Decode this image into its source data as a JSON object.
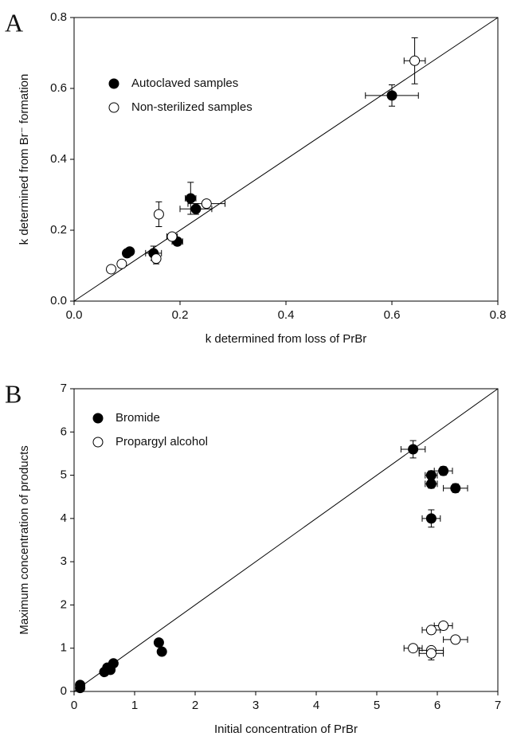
{
  "chart_data": [
    {
      "type": "scatter",
      "panel_label": "A",
      "x_label": "k determined from loss of PrBr",
      "y_label": "k determined from Br⁻ formation",
      "xlim": [
        0,
        0.8
      ],
      "ylim": [
        0,
        0.8
      ],
      "xticks": [
        {
          "value": 0,
          "label": "0.0"
        },
        0.2,
        0.4,
        0.6,
        0.8
      ],
      "yticks": [
        {
          "value": 0,
          "label": "0.0"
        },
        0.2,
        0.4,
        0.6,
        0.8
      ],
      "legend": "upper left",
      "series": [
        {
          "name": "Autoclaved samples",
          "color": "#000000",
          "marker": "filled",
          "x": [
            0.6,
            0.22,
            0.23,
            0.195,
            0.15,
            0.1,
            0.105
          ],
          "values": [
            0.58,
            0.29,
            0.26,
            0.168,
            0.135,
            0.135,
            0.14
          ],
          "xerr": [
            0.05,
            0.01,
            0.03,
            0.01,
            0.015,
            null,
            null
          ],
          "yerr": [
            0.03,
            0.045,
            0.015,
            0.01,
            0.02,
            0.01,
            null
          ]
        },
        {
          "name": "Non-sterilized samples",
          "color": "#000000",
          "marker": "open",
          "x": [
            0.643,
            0.16,
            0.25,
            0.185,
            0.155,
            0.09,
            0.07
          ],
          "values": [
            0.678,
            0.245,
            0.275,
            0.182,
            0.12,
            0.105,
            0.09
          ],
          "xerr": [
            0.02,
            null,
            0.035,
            0.01,
            null,
            null,
            null
          ],
          "yerr": [
            0.065,
            0.035,
            0.01,
            null,
            0.015,
            null,
            null
          ]
        }
      ]
    },
    {
      "type": "scatter",
      "panel_label": "B",
      "x_label": "Initial concentration of PrBr",
      "y_label": "Maximum concentration of products",
      "xlim": [
        0,
        7
      ],
      "ylim": [
        0,
        7
      ],
      "xticks": [
        0,
        1,
        2,
        3,
        4,
        5,
        6,
        7
      ],
      "yticks": [
        0,
        1,
        2,
        3,
        4,
        5,
        6,
        7
      ],
      "legend": "upper left",
      "series": [
        {
          "name": "Bromide",
          "color": "#000000",
          "marker": "filled",
          "x": [
            0.1,
            0.1,
            0.5,
            0.55,
            0.6,
            0.65,
            1.4,
            1.45,
            5.6,
            6.1,
            5.9,
            5.9,
            6.3,
            5.9
          ],
          "values": [
            0.15,
            0.08,
            0.45,
            0.55,
            0.5,
            0.65,
            1.13,
            0.92,
            5.6,
            5.1,
            5.0,
            4.8,
            4.7,
            4.0
          ],
          "xerr": [
            null,
            null,
            null,
            null,
            null,
            null,
            null,
            null,
            0.2,
            0.15,
            0.1,
            0.1,
            0.2,
            0.15
          ],
          "yerr": [
            null,
            null,
            null,
            null,
            null,
            null,
            null,
            null,
            0.2,
            0.1,
            0.1,
            0.1,
            0.1,
            0.2
          ]
        },
        {
          "name": "Propargyl alcohol",
          "color": "#000000",
          "marker": "open",
          "x": [
            5.6,
            5.9,
            6.1,
            6.3,
            5.9,
            5.9
          ],
          "values": [
            1.0,
            1.42,
            1.52,
            1.2,
            0.95,
            0.88
          ],
          "xerr": [
            0.15,
            0.15,
            0.15,
            0.2,
            0.2,
            0.2
          ],
          "yerr": [
            null,
            null,
            null,
            null,
            null,
            0.15
          ]
        }
      ]
    }
  ]
}
